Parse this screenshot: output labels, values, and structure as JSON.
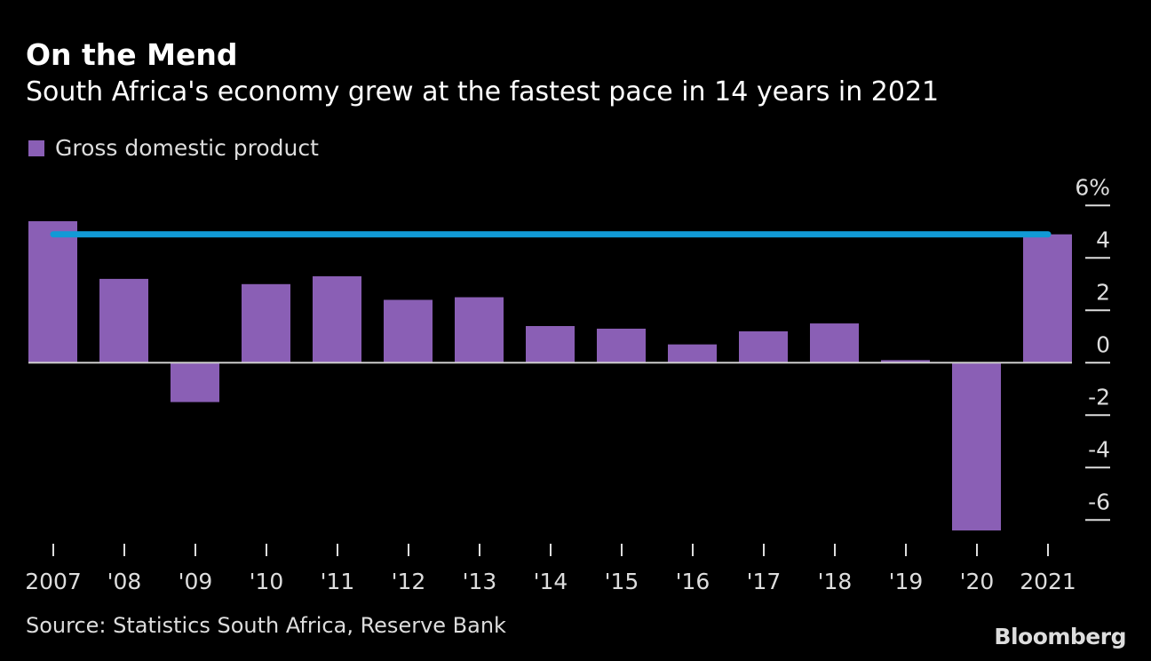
{
  "chart_data": {
    "type": "bar",
    "title": "On the Mend",
    "subtitle": "South Africa's economy grew at the fastest pace in 14 years in 2021",
    "legend": [
      {
        "name": "Gross domestic product",
        "color": "#8a5fb5"
      }
    ],
    "legend_placement": "top-left",
    "categories": [
      "2007",
      "'08",
      "'09",
      "'10",
      "'11",
      "'12",
      "'13",
      "'14",
      "'15",
      "'16",
      "'17",
      "'18",
      "'19",
      "'20",
      "2021"
    ],
    "series": [
      {
        "name": "Gross domestic product",
        "values": [
          5.4,
          3.2,
          -1.5,
          3.0,
          3.3,
          2.4,
          2.5,
          1.4,
          1.3,
          0.7,
          1.2,
          1.5,
          0.1,
          -6.4,
          4.9
        ]
      }
    ],
    "reference_line": {
      "value": 4.9,
      "from": "2007",
      "to": "2021",
      "color": "#119ad6"
    },
    "ylim": [
      -7,
      6
    ],
    "yticks": [
      6,
      4,
      2,
      0,
      -2,
      -4,
      -6
    ],
    "ytick_labels": [
      "6%",
      "4",
      "2",
      "0",
      "-2",
      "-4",
      "-6"
    ],
    "yaxis_position": "right",
    "grid": false,
    "xlabel": "",
    "ylabel": "",
    "colors": {
      "bar": "#8a5fb5",
      "line": "#119ad6",
      "background": "#000000"
    }
  },
  "source": "Source: Statistics South Africa, Reserve Bank",
  "logo": "Bloomberg"
}
